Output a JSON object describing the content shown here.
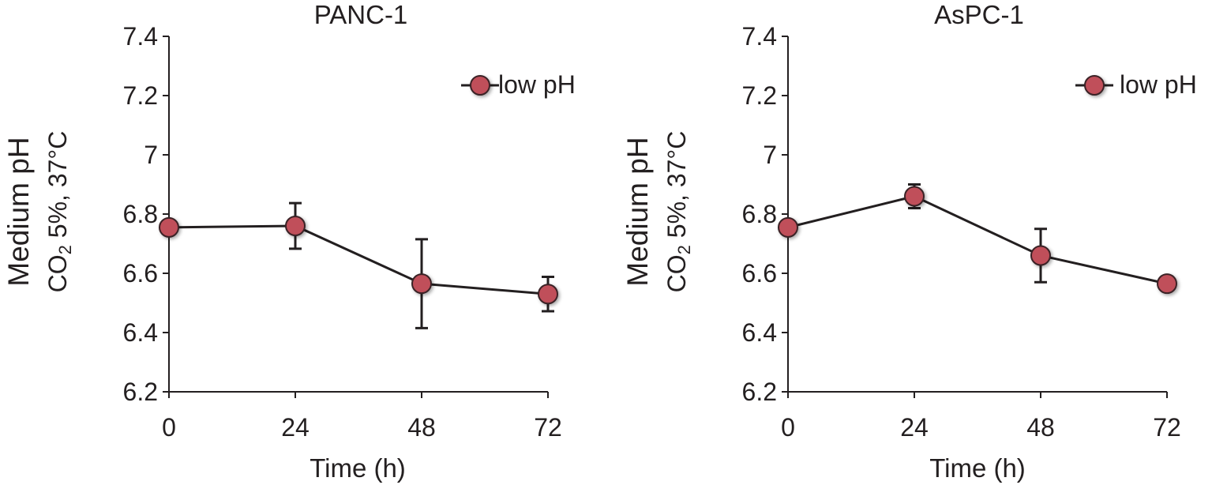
{
  "chart_data": [
    {
      "type": "line",
      "title": "PANC-1",
      "xlabel": "Time (h)",
      "ylabel": "Medium pH",
      "ylabel2": {
        "prefix": "CO",
        "sub": "2",
        "suffix": " 5%, 37°C"
      },
      "x": [
        0,
        24,
        48,
        72
      ],
      "xticks": [
        "0",
        "24",
        "48",
        "72"
      ],
      "ylim": [
        6.2,
        7.4
      ],
      "yticks": [
        "6.2",
        "6.4",
        "6.6",
        "6.8",
        "7",
        "7.2",
        "7.4"
      ],
      "grid": false,
      "legend_position": "top-right",
      "series": [
        {
          "name": "low pH",
          "values": [
            6.755,
            6.76,
            6.565,
            6.53
          ],
          "errors": [
            0.0,
            0.077,
            0.15,
            0.058
          ],
          "color": "#c0505a"
        }
      ]
    },
    {
      "type": "line",
      "title": "AsPC-1",
      "xlabel": "Time (h)",
      "ylabel": "Medium pH",
      "ylabel2": {
        "prefix": "CO",
        "sub": "2",
        "suffix": " 5%, 37°C"
      },
      "x": [
        0,
        24,
        48,
        72
      ],
      "xticks": [
        "0",
        "24",
        "48",
        "72"
      ],
      "ylim": [
        6.2,
        7.4
      ],
      "yticks": [
        "6.2",
        "6.4",
        "6.6",
        "6.8",
        "7",
        "7.2",
        "7.4"
      ],
      "grid": false,
      "legend_position": "top-right",
      "series": [
        {
          "name": "low pH",
          "values": [
            6.755,
            6.86,
            6.66,
            6.565
          ],
          "errors": [
            0.0,
            0.04,
            0.09,
            0.0
          ],
          "color": "#c0505a"
        }
      ]
    }
  ]
}
